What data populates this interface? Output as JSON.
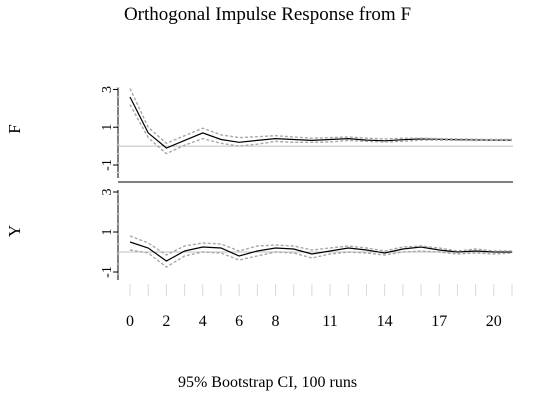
{
  "chart_data": {
    "type": "line",
    "title": "Orthogonal Impulse Response from F",
    "xlabel": "95% Bootstrap CI, 100 runs",
    "x": [
      0,
      1,
      2,
      3,
      4,
      5,
      6,
      7,
      8,
      9,
      10,
      11,
      12,
      13,
      14,
      15,
      16,
      17,
      18,
      19,
      20,
      21
    ],
    "x_ticks": [
      0,
      2,
      4,
      6,
      8,
      11,
      14,
      17,
      20
    ],
    "panels": [
      {
        "ylabel": "F",
        "ylim": [
          -1.9,
          3.5
        ],
        "y_ticks": [
          3,
          1,
          -1
        ],
        "y_tick_labels": [
          "3",
          "1",
          "-1"
        ],
        "series": [
          {
            "role": "estimate",
            "values": [
              2.6,
              0.7,
              -0.1,
              0.3,
              0.7,
              0.35,
              0.2,
              0.3,
              0.4,
              0.35,
              0.3,
              0.35,
              0.4,
              0.32,
              0.28,
              0.34,
              0.38,
              0.36,
              0.34,
              0.33,
              0.32,
              0.32
            ]
          },
          {
            "role": "upper",
            "values": [
              3.05,
              1.0,
              0.15,
              0.55,
              0.95,
              0.6,
              0.45,
              0.5,
              0.55,
              0.48,
              0.42,
              0.45,
              0.48,
              0.42,
              0.38,
              0.42,
              0.42,
              0.4,
              0.38,
              0.36,
              0.35,
              0.35
            ]
          },
          {
            "role": "lower",
            "values": [
              2.2,
              0.45,
              -0.4,
              0.05,
              0.4,
              0.15,
              0.0,
              0.1,
              0.25,
              0.2,
              0.2,
              0.22,
              0.3,
              0.25,
              0.22,
              0.26,
              0.32,
              0.32,
              0.3,
              0.3,
              0.3,
              0.3
            ]
          }
        ]
      },
      {
        "ylabel": "Y",
        "ylim": [
          -1.6,
          3.5
        ],
        "y_ticks": [
          3,
          1,
          -1
        ],
        "y_tick_labels": [
          "3",
          "1",
          "-1"
        ],
        "series": [
          {
            "role": "estimate",
            "values": [
              0.5,
              0.2,
              -0.45,
              0.05,
              0.25,
              0.2,
              -0.2,
              0.05,
              0.2,
              0.15,
              -0.1,
              0.05,
              0.2,
              0.1,
              -0.05,
              0.15,
              0.25,
              0.1,
              0.0,
              0.05,
              0.0,
              0.0
            ]
          },
          {
            "role": "upper",
            "values": [
              0.8,
              0.45,
              -0.15,
              0.3,
              0.45,
              0.4,
              0.05,
              0.3,
              0.35,
              0.3,
              0.1,
              0.2,
              0.3,
              0.2,
              0.05,
              0.25,
              0.3,
              0.2,
              0.05,
              0.15,
              0.05,
              0.05
            ]
          },
          {
            "role": "lower",
            "values": [
              0.1,
              -0.05,
              -0.75,
              -0.2,
              0.0,
              -0.05,
              -0.4,
              -0.2,
              0.0,
              -0.05,
              -0.3,
              -0.1,
              0.0,
              -0.05,
              -0.15,
              0.0,
              0.05,
              0.0,
              -0.1,
              -0.05,
              -0.1,
              -0.05
            ]
          }
        ]
      }
    ],
    "colors": {
      "estimate": "#000000",
      "band": "#a8a8a8",
      "zero_line": "#c0c0c0",
      "axis": "#000000",
      "grid": "#d9d9d9"
    }
  }
}
